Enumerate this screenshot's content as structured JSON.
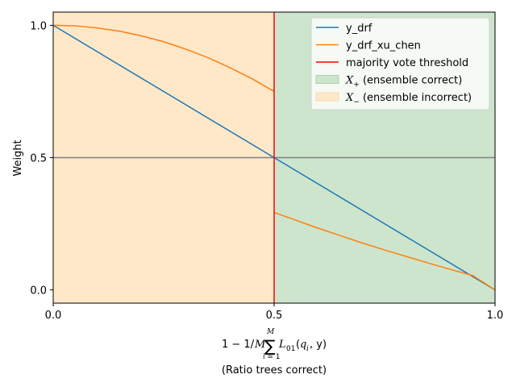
{
  "chart_data": {
    "type": "line",
    "xlabel_line2": "(Ratio trees correct)",
    "ylabel": "Weight",
    "xlim": [
      0.0,
      1.0
    ],
    "ylim": [
      -0.05,
      1.05
    ],
    "x_ticks": [
      0.0,
      0.5,
      1.0
    ],
    "x_tick_labels": [
      "0.0",
      "0.5",
      "1.0"
    ],
    "y_ticks": [
      0.0,
      0.5,
      1.0
    ],
    "y_tick_labels": [
      "0.0",
      "0.5",
      "1.0"
    ],
    "regions": [
      {
        "name": "X_- (ensemble incorrect)",
        "x_range": [
          0.0,
          0.5
        ],
        "color": "#ffe8c8"
      },
      {
        "name": "X_+ (ensemble correct)",
        "x_range": [
          0.5,
          1.0
        ],
        "color": "#cde5cd"
      }
    ],
    "horizontal_line": {
      "y": 0.5,
      "color": "#808080"
    },
    "threshold_line": {
      "name": "majority vote threshold",
      "x": 0.5,
      "color": "#ff0000"
    },
    "series": [
      {
        "name": "y_drf",
        "color": "#1f77b4",
        "x": [
          0.0,
          0.5,
          1.0
        ],
        "y": [
          1.0,
          0.5,
          0.0
        ]
      },
      {
        "name": "y_drf_xu_chen",
        "color": "#ff7f0e",
        "x": [
          0.0,
          0.05,
          0.1,
          0.15,
          0.2,
          0.25,
          0.3,
          0.35,
          0.4,
          0.45,
          0.5
        ],
        "y": [
          1.0,
          0.998,
          0.99,
          0.978,
          0.96,
          0.938,
          0.91,
          0.878,
          0.84,
          0.798,
          0.75
        ]
      },
      {
        "name": "y_drf_xu_chen",
        "color": "#ff7f0e",
        "x": [
          0.5,
          0.55,
          0.6,
          0.65,
          0.7,
          0.75,
          0.8,
          0.85,
          0.9,
          0.95,
          1.0
        ],
        "y": [
          0.293,
          0.263,
          0.233,
          0.205,
          0.177,
          0.151,
          0.126,
          0.101,
          0.077,
          0.054,
          0.0
        ]
      }
    ],
    "legend": {
      "placement": "top-right",
      "entries": [
        {
          "label": "y_drf",
          "kind": "line",
          "color": "#1f77b4"
        },
        {
          "label": "y_drf_xu_chen",
          "kind": "line",
          "color": "#ff7f0e"
        },
        {
          "label": "majority vote threshold",
          "kind": "line",
          "color": "#ff0000"
        },
        {
          "label_math": "X",
          "label_sub": "+",
          "label_rest": " (ensemble correct)",
          "kind": "patch",
          "color": "#cde5cd",
          "edge": "#a9d3a9"
        },
        {
          "label_math": "X",
          "label_sub": "−",
          "label_rest": " (ensemble incorrect)",
          "kind": "patch",
          "color": "#ffe8c8",
          "edge": "#f5d9ad"
        }
      ]
    },
    "xlabel_formula": {
      "prefix": "1 − 1/",
      "M_top": "M",
      "sum": "∑",
      "sub_lower": "i = 1",
      "L": "L",
      "L_sub": "01",
      "args_open": "(",
      "q": "q",
      "q_sub": "i",
      "comma_y": ", y)"
    },
    "grid": false
  }
}
